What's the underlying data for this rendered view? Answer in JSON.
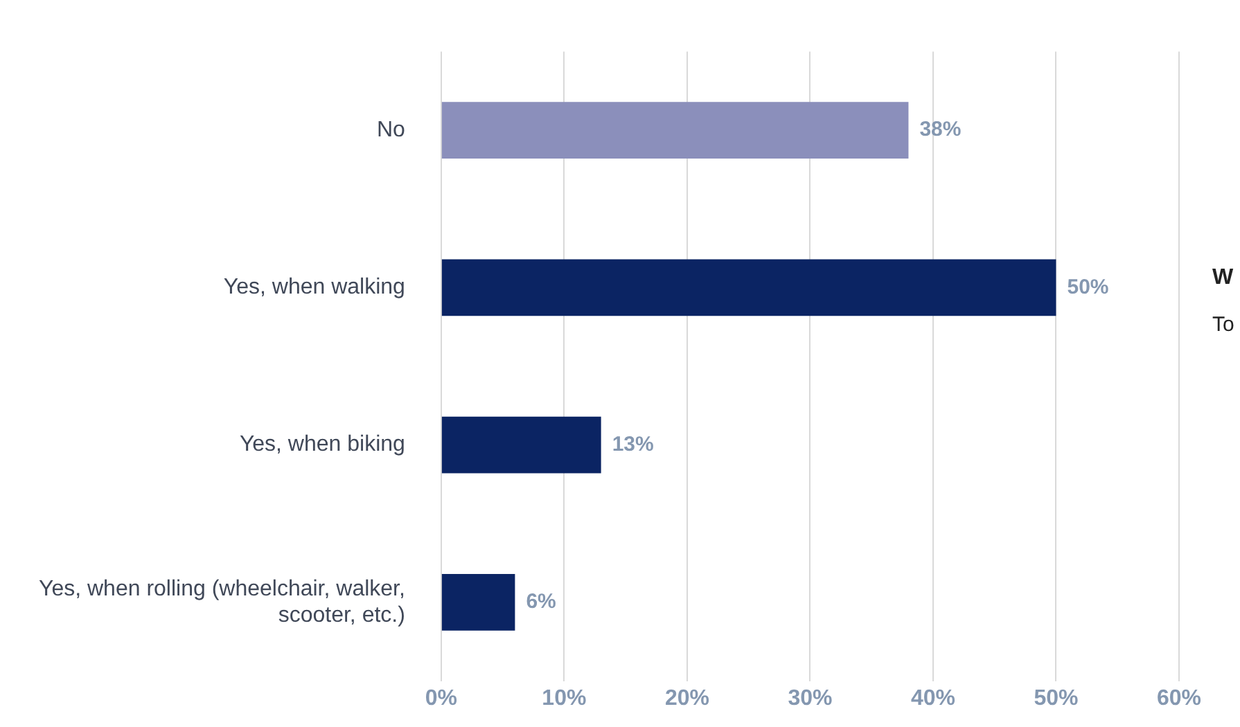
{
  "chart_data": {
    "type": "bar",
    "orientation": "horizontal",
    "categories": [
      "No",
      "Yes, when walking",
      "Yes, when biking",
      "Yes, when rolling (wheelchair, walker, scooter, etc.)"
    ],
    "values": [
      38,
      50,
      13,
      6
    ],
    "colors": [
      "#8b8fbb",
      "#0b2463",
      "#0b2463",
      "#0b2463"
    ],
    "value_labels": [
      "38%",
      "50%",
      "13%",
      "6%"
    ],
    "xlim": [
      0,
      60
    ],
    "xticks": [
      {
        "value": 0,
        "label": "0%"
      },
      {
        "value": 10,
        "label": "10%"
      },
      {
        "value": 20,
        "label": "20%"
      },
      {
        "value": 30,
        "label": "30%"
      },
      {
        "value": 40,
        "label": "40%"
      },
      {
        "value": 50,
        "label": "50%"
      },
      {
        "value": 60,
        "label": "60%"
      }
    ],
    "grid": "x",
    "legend": false,
    "annotations": [
      "W",
      "To"
    ]
  }
}
